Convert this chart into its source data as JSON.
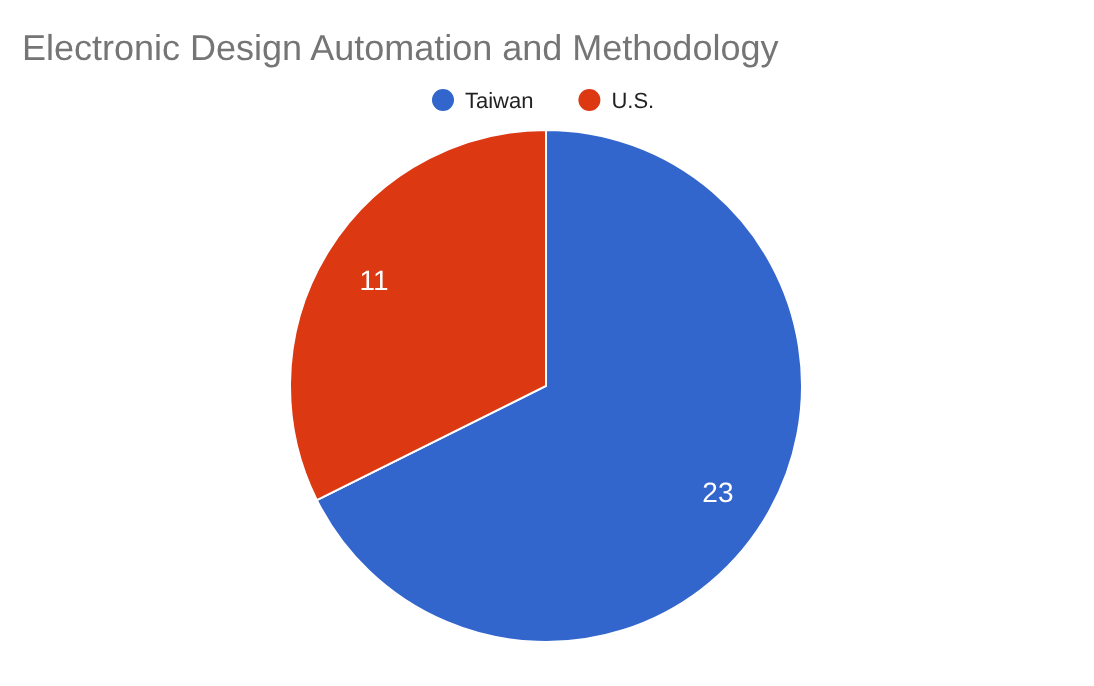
{
  "chart_data": {
    "type": "pie",
    "title": "Electronic Design Automation and Methodology",
    "categories": [
      "Taiwan",
      "U.S."
    ],
    "values": [
      23,
      11
    ],
    "colors": [
      "#3366cc",
      "#dc3912"
    ],
    "data_labels": true,
    "legend": "top"
  }
}
